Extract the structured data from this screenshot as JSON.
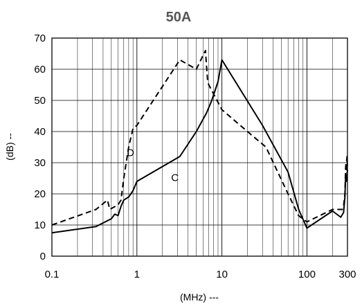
{
  "chart_data": {
    "type": "line",
    "title": "50A",
    "xlabel": "(MHz) ---",
    "ylabel": "(dB) --",
    "x_scale": "log",
    "xlim": [
      0.1,
      300
    ],
    "ylim": [
      0,
      70
    ],
    "x_ticks": [
      0.1,
      1,
      10,
      100,
      300
    ],
    "x_tick_labels": [
      "0.1",
      "1",
      "10",
      "100",
      "300"
    ],
    "y_ticks": [
      0,
      10,
      20,
      30,
      40,
      50,
      60,
      70
    ],
    "y_tick_labels": [
      "0",
      "10",
      "20",
      "30",
      "40",
      "50",
      "60",
      "70"
    ],
    "grid": true,
    "annotations": [
      {
        "text": "D",
        "x": 0.84,
        "y": 33
      },
      {
        "text": "C",
        "x": 2.8,
        "y": 25
      }
    ],
    "series": [
      {
        "label": "D",
        "style": "dashed",
        "color": "#000000",
        "points": [
          [
            0.1,
            10
          ],
          [
            0.33,
            15
          ],
          [
            0.45,
            18
          ],
          [
            0.48,
            15
          ],
          [
            0.6,
            16.5
          ],
          [
            0.65,
            18
          ],
          [
            0.7,
            25
          ],
          [
            0.8,
            35
          ],
          [
            0.9,
            41
          ],
          [
            1.0,
            42
          ],
          [
            3.2,
            63
          ],
          [
            5.0,
            60
          ],
          [
            6.4,
            66
          ],
          [
            6.8,
            56
          ],
          [
            7.0,
            55
          ],
          [
            10,
            47
          ],
          [
            20,
            40
          ],
          [
            33,
            35
          ],
          [
            60,
            20
          ],
          [
            80,
            13
          ],
          [
            100,
            11
          ],
          [
            200,
            15
          ],
          [
            260,
            15
          ],
          [
            270,
            16
          ],
          [
            280,
            20
          ],
          [
            285,
            28
          ],
          [
            288,
            30
          ],
          [
            291,
            27
          ],
          [
            294,
            31
          ],
          [
            297,
            32
          ],
          [
            299,
            29
          ],
          [
            300,
            27
          ]
        ]
      },
      {
        "label": "C",
        "style": "solid",
        "color": "#000000",
        "points": [
          [
            0.1,
            7.5
          ],
          [
            0.33,
            9.5
          ],
          [
            0.5,
            12
          ],
          [
            0.55,
            13.5
          ],
          [
            0.6,
            13
          ],
          [
            0.65,
            16
          ],
          [
            0.7,
            18
          ],
          [
            0.8,
            19
          ],
          [
            0.9,
            21
          ],
          [
            1.0,
            24
          ],
          [
            3.2,
            32
          ],
          [
            5.0,
            40
          ],
          [
            6.6,
            46
          ],
          [
            7.6,
            50
          ],
          [
            8.5,
            54
          ],
          [
            9.0,
            56
          ],
          [
            10,
            63
          ],
          [
            30,
            42
          ],
          [
            60,
            27
          ],
          [
            80,
            15
          ],
          [
            100,
            9
          ],
          [
            200,
            14.5
          ],
          [
            250,
            12.5
          ],
          [
            270,
            14
          ],
          [
            280,
            19
          ],
          [
            285,
            25
          ],
          [
            288,
            26
          ],
          [
            291,
            24
          ],
          [
            294,
            25
          ],
          [
            297,
            27
          ],
          [
            300,
            27
          ]
        ]
      }
    ]
  }
}
